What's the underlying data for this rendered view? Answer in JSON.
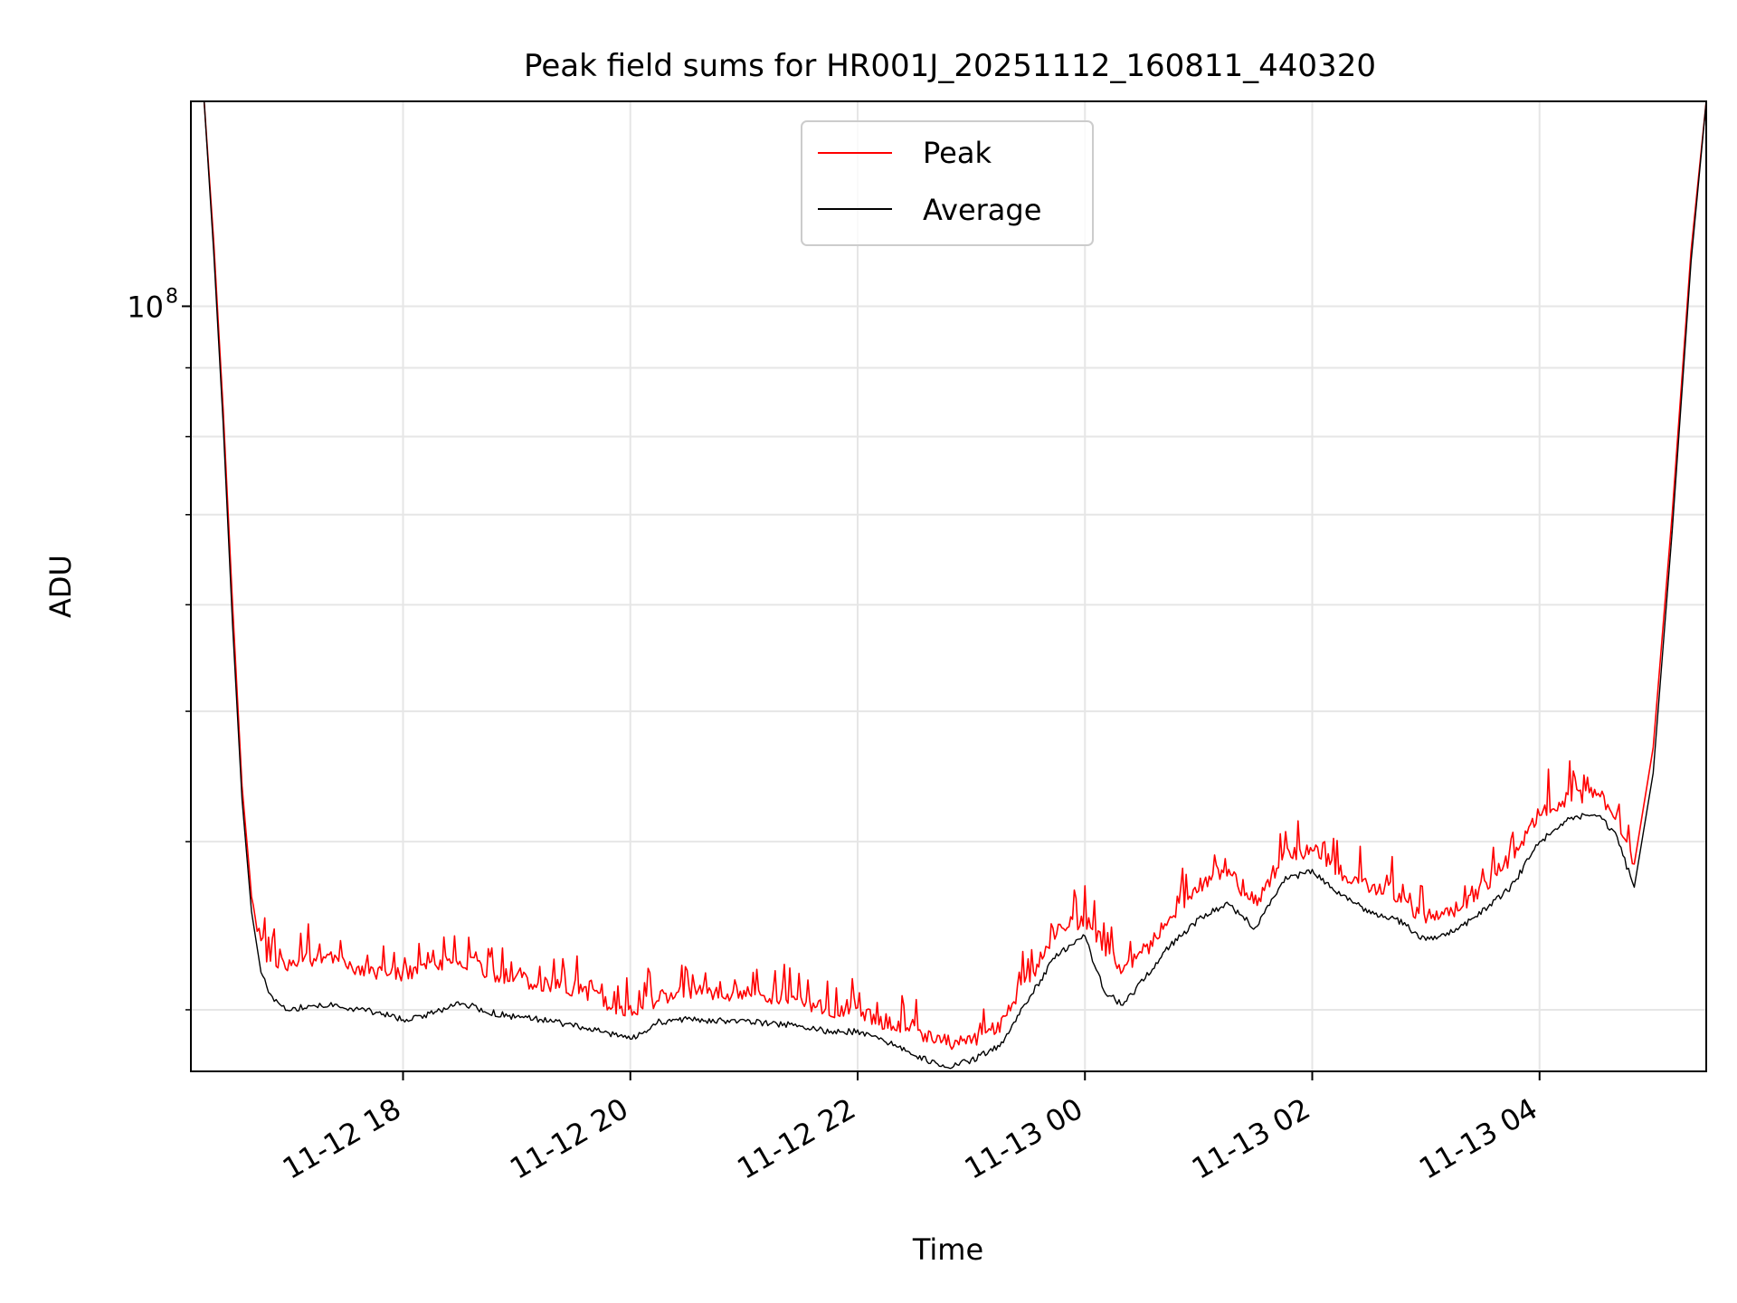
{
  "chart_data": {
    "type": "line",
    "title": "Peak field sums for HR001J_20251112_160811_440320",
    "xlabel": "Time",
    "ylabel": "ADU",
    "y_scale": "log",
    "ylim": [
      27000000,
      142000000
    ],
    "y_major_ticks": [
      {
        "value": 100000000,
        "base": "10",
        "exp": "8"
      }
    ],
    "y_minor_ticks": [
      30000000,
      40000000,
      50000000,
      60000000,
      70000000,
      80000000,
      90000000,
      200000000
    ],
    "xlim": [
      "2025-11-12 16:08",
      "2025-11-13 05:28"
    ],
    "x_ticks": [
      {
        "value": "2025-11-12 18:00",
        "label": "11-12 18"
      },
      {
        "value": "2025-11-12 20:00",
        "label": "11-12 20"
      },
      {
        "value": "2025-11-12 22:00",
        "label": "11-12 22"
      },
      {
        "value": "2025-11-13 00:00",
        "label": "11-13 00"
      },
      {
        "value": "2025-11-13 02:00",
        "label": "11-13 02"
      },
      {
        "value": "2025-11-13 04:00",
        "label": "11-13 04"
      }
    ],
    "grid": true,
    "legend_position": "top-center",
    "series": [
      {
        "name": "Peak",
        "color": "#ff0000",
        "x": [
          "2025-11-12 16:08",
          "2025-11-12 16:15",
          "2025-11-12 16:20",
          "2025-11-12 16:25",
          "2025-11-12 16:30",
          "2025-11-12 16:35",
          "2025-11-12 16:40",
          "2025-11-12 16:45",
          "2025-11-12 16:50",
          "2025-11-12 16:55",
          "2025-11-12 17:00",
          "2025-11-12 17:10",
          "2025-11-12 17:20",
          "2025-11-12 17:30",
          "2025-11-12 17:45",
          "2025-11-12 18:00",
          "2025-11-12 18:15",
          "2025-11-12 18:30",
          "2025-11-12 18:45",
          "2025-11-12 19:00",
          "2025-11-12 19:15",
          "2025-11-12 19:30",
          "2025-11-12 19:45",
          "2025-11-12 20:00",
          "2025-11-12 20:15",
          "2025-11-12 20:30",
          "2025-11-12 21:00",
          "2025-11-12 21:30",
          "2025-11-12 21:45",
          "2025-11-12 22:00",
          "2025-11-12 22:15",
          "2025-11-12 22:30",
          "2025-11-12 22:45",
          "2025-11-12 23:00",
          "2025-11-12 23:15",
          "2025-11-12 23:30",
          "2025-11-12 23:45",
          "2025-11-13 00:00",
          "2025-11-13 00:10",
          "2025-11-13 00:20",
          "2025-11-13 00:30",
          "2025-11-13 00:45",
          "2025-11-13 01:00",
          "2025-11-13 01:15",
          "2025-11-13 01:30",
          "2025-11-13 01:45",
          "2025-11-13 02:00",
          "2025-11-13 02:15",
          "2025-11-13 02:30",
          "2025-11-13 02:45",
          "2025-11-13 03:00",
          "2025-11-13 03:15",
          "2025-11-13 03:30",
          "2025-11-13 03:45",
          "2025-11-13 04:00",
          "2025-11-13 04:15",
          "2025-11-13 04:30",
          "2025-11-13 04:40",
          "2025-11-13 04:50",
          "2025-11-13 05:00",
          "2025-11-13 05:10",
          "2025-11-13 05:20",
          "2025-11-13 05:28"
        ],
        "y": [
          142000000,
          142000000,
          112000000,
          84000000,
          60000000,
          44000000,
          36500000,
          33500000,
          32600000,
          32500000,
          32400000,
          32700000,
          32800000,
          32400000,
          32000000,
          31800000,
          32200000,
          32700000,
          32000000,
          31600000,
          31400000,
          31100000,
          30500000,
          29900000,
          30600000,
          30900000,
          30800000,
          30400000,
          30000000,
          29900000,
          29300000,
          28800000,
          28400000,
          28500000,
          29100000,
          31500000,
          34500000,
          35000000,
          33500000,
          32000000,
          33000000,
          35000000,
          37000000,
          38000000,
          36000000,
          39000000,
          39500000,
          38000000,
          37000000,
          36500000,
          35000000,
          35500000,
          37000000,
          39000000,
          42000000,
          43000000,
          43500000,
          42000000,
          38500000,
          47000000,
          70000000,
          110000000,
          142000000
        ]
      },
      {
        "name": "Average",
        "color": "#000000",
        "x": [
          "2025-11-12 16:08",
          "2025-11-12 16:15",
          "2025-11-12 16:20",
          "2025-11-12 16:25",
          "2025-11-12 16:30",
          "2025-11-12 16:35",
          "2025-11-12 16:40",
          "2025-11-12 16:45",
          "2025-11-12 16:50",
          "2025-11-12 16:55",
          "2025-11-12 17:00",
          "2025-11-12 17:10",
          "2025-11-12 17:20",
          "2025-11-12 17:30",
          "2025-11-12 17:45",
          "2025-11-12 18:00",
          "2025-11-12 18:15",
          "2025-11-12 18:30",
          "2025-11-12 18:45",
          "2025-11-12 19:00",
          "2025-11-12 19:15",
          "2025-11-12 19:30",
          "2025-11-12 19:45",
          "2025-11-12 20:00",
          "2025-11-12 20:15",
          "2025-11-12 20:30",
          "2025-11-12 21:00",
          "2025-11-12 21:30",
          "2025-11-12 21:45",
          "2025-11-12 22:00",
          "2025-11-12 22:15",
          "2025-11-12 22:30",
          "2025-11-12 22:45",
          "2025-11-12 23:00",
          "2025-11-12 23:15",
          "2025-11-12 23:30",
          "2025-11-12 23:45",
          "2025-11-13 00:00",
          "2025-11-13 00:10",
          "2025-11-13 00:20",
          "2025-11-13 00:30",
          "2025-11-13 00:45",
          "2025-11-13 01:00",
          "2025-11-13 01:15",
          "2025-11-13 01:30",
          "2025-11-13 01:45",
          "2025-11-13 02:00",
          "2025-11-13 02:15",
          "2025-11-13 02:30",
          "2025-11-13 02:45",
          "2025-11-13 03:00",
          "2025-11-13 03:15",
          "2025-11-13 03:30",
          "2025-11-13 03:45",
          "2025-11-13 04:00",
          "2025-11-13 04:15",
          "2025-11-13 04:30",
          "2025-11-13 04:40",
          "2025-11-13 04:50",
          "2025-11-13 05:00",
          "2025-11-13 05:10",
          "2025-11-13 05:20",
          "2025-11-13 05:28"
        ],
        "y": [
          142000000,
          142000000,
          110000000,
          82000000,
          58000000,
          43000000,
          35500000,
          32000000,
          30800000,
          30200000,
          30000000,
          30200000,
          30300000,
          30100000,
          29900000,
          29500000,
          29800000,
          30400000,
          29900000,
          29600000,
          29500000,
          29200000,
          28900000,
          28500000,
          29400000,
          29500000,
          29400000,
          29200000,
          28900000,
          28900000,
          28400000,
          27800000,
          27200000,
          27500000,
          28200000,
          30500000,
          33000000,
          34000000,
          31000000,
          30200000,
          31500000,
          33500000,
          35000000,
          36000000,
          34500000,
          37500000,
          38000000,
          36500000,
          35500000,
          35000000,
          33800000,
          34300000,
          35500000,
          37000000,
          40000000,
          41500000,
          42000000,
          40500000,
          37000000,
          45000000,
          68000000,
          108000000,
          142000000
        ]
      }
    ]
  }
}
